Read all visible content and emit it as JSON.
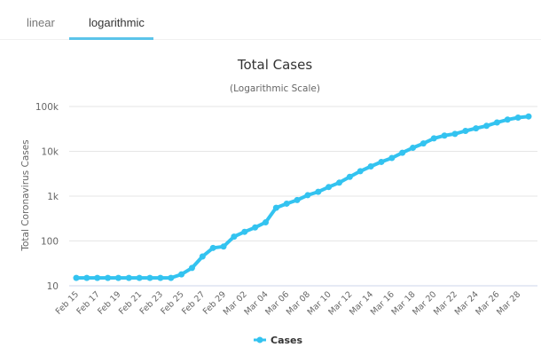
{
  "tabs": [
    {
      "label": "linear",
      "active": false
    },
    {
      "label": "logarithmic",
      "active": true
    }
  ],
  "accent_color": "#33c3f0",
  "chart_data": {
    "type": "line",
    "title": "Total Cases",
    "subtitle": "(Logarithmic Scale)",
    "xlabel": "",
    "ylabel": "Total Coronavirus Cases",
    "yscale": "log",
    "ylim": [
      10,
      100000
    ],
    "yticks": [
      {
        "value": 10,
        "label": "10"
      },
      {
        "value": 100,
        "label": "100"
      },
      {
        "value": 1000,
        "label": "1k"
      },
      {
        "value": 10000,
        "label": "10k"
      },
      {
        "value": 100000,
        "label": "100k"
      }
    ],
    "grid": true,
    "legend_position": "bottom-center",
    "x": [
      "Feb 15",
      "Feb 16",
      "Feb 17",
      "Feb 18",
      "Feb 19",
      "Feb 20",
      "Feb 21",
      "Feb 22",
      "Feb 23",
      "Feb 24",
      "Feb 25",
      "Feb 26",
      "Feb 27",
      "Feb 28",
      "Feb 29",
      "Mar 01",
      "Mar 02",
      "Mar 03",
      "Mar 04",
      "Mar 05",
      "Mar 06",
      "Mar 07",
      "Mar 08",
      "Mar 09",
      "Mar 10",
      "Mar 11",
      "Mar 12",
      "Mar 13",
      "Mar 14",
      "Mar 15",
      "Mar 16",
      "Mar 17",
      "Mar 18",
      "Mar 19",
      "Mar 20",
      "Mar 21",
      "Mar 22",
      "Mar 23",
      "Mar 24",
      "Mar 25",
      "Mar 26",
      "Mar 27",
      "Mar 28",
      "Mar 29"
    ],
    "xtick_labels": [
      "Feb 15",
      "Feb 17",
      "Feb 19",
      "Feb 21",
      "Feb 23",
      "Feb 25",
      "Feb 27",
      "Feb 29",
      "Mar 02",
      "Mar 04",
      "Mar 06",
      "Mar 08",
      "Mar 10",
      "Mar 12",
      "Mar 14",
      "Mar 16",
      "Mar 18",
      "Mar 20",
      "Mar 22",
      "Mar 24",
      "Mar 26",
      "Mar 28"
    ],
    "series": [
      {
        "name": "Cases",
        "color": "#33c3f0",
        "values": [
          15,
          15,
          15,
          15,
          15,
          15,
          15,
          15,
          15,
          15,
          18,
          25,
          45,
          70,
          75,
          125,
          160,
          200,
          260,
          550,
          680,
          820,
          1050,
          1250,
          1600,
          2000,
          2700,
          3600,
          4600,
          5800,
          7100,
          9300,
          12000,
          15000,
          19500,
          22500,
          24500,
          28500,
          32500,
          37000,
          44000,
          51000,
          56500,
          60000
        ]
      }
    ]
  }
}
